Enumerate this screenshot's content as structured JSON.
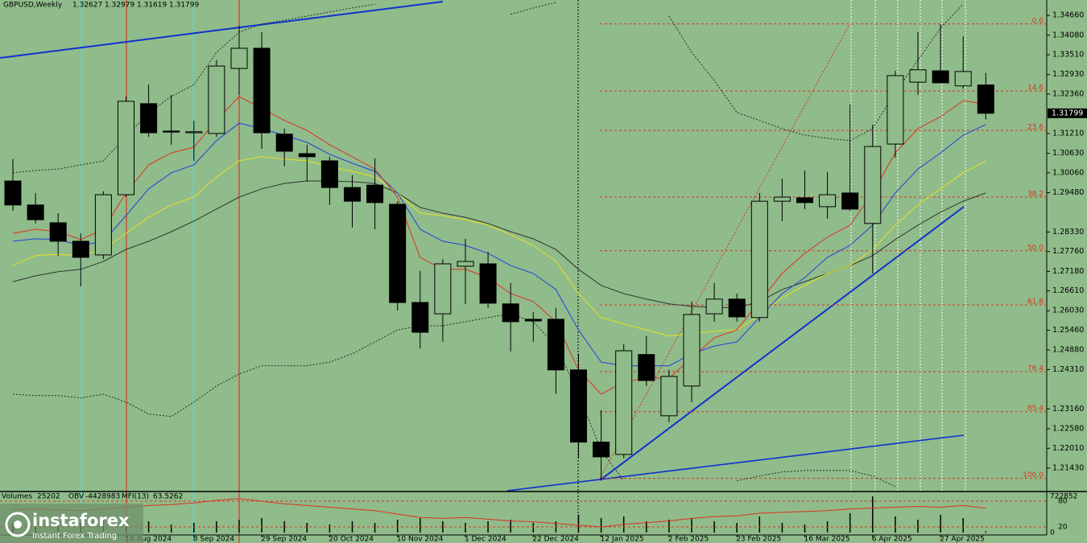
{
  "chart_data": {
    "type": "candlestick",
    "symbol": "GBPUSD,Weekly",
    "categories": [
      null,
      null,
      null,
      null,
      null,
      "18 Aug 2024",
      null,
      null,
      "8 Sep 2024",
      null,
      null,
      "29 Sep 2024",
      null,
      null,
      "20 Oct 2024",
      null,
      null,
      "10 Nov 2024",
      null,
      null,
      "1 Dec 2024",
      null,
      null,
      "22 Dec 2024",
      null,
      null,
      "12 Jan 2025",
      null,
      null,
      "2 Feb 2025",
      null,
      null,
      "23 Feb 2025",
      null,
      null,
      "16 Mar 2025",
      null,
      null,
      "6 Apr 2025",
      null,
      null,
      "27 Apr 2025",
      null,
      null
    ],
    "candles": [
      {
        "open": 1.2982,
        "high": 1.3046,
        "low": 1.2895,
        "close": 1.2912
      },
      {
        "open": 1.2912,
        "high": 1.2947,
        "low": 1.2858,
        "close": 1.2869
      },
      {
        "open": 1.286,
        "high": 1.2888,
        "low": 1.2764,
        "close": 1.2806
      },
      {
        "open": 1.2806,
        "high": 1.2829,
        "low": 1.2674,
        "close": 1.2759
      },
      {
        "open": 1.2766,
        "high": 1.2952,
        "low": 1.2754,
        "close": 1.2942
      },
      {
        "open": 1.2942,
        "high": 1.3229,
        "low": 1.2935,
        "close": 1.3215
      },
      {
        "open": 1.3208,
        "high": 1.3264,
        "low": 1.3111,
        "close": 1.3123
      },
      {
        "open": 1.3128,
        "high": 1.3234,
        "low": 1.3088,
        "close": 1.3125
      },
      {
        "open": 1.3123,
        "high": 1.3158,
        "low": 1.3041,
        "close": 1.3126
      },
      {
        "open": 1.3121,
        "high": 1.3335,
        "low": 1.3111,
        "close": 1.3318
      },
      {
        "open": 1.3311,
        "high": 1.3436,
        "low": 1.3234,
        "close": 1.337
      },
      {
        "open": 1.337,
        "high": 1.3417,
        "low": 1.3076,
        "close": 1.3123
      },
      {
        "open": 1.3119,
        "high": 1.3135,
        "low": 1.3025,
        "close": 1.3069
      },
      {
        "open": 1.3062,
        "high": 1.3088,
        "low": 1.298,
        "close": 1.3053
      },
      {
        "open": 1.3041,
        "high": 1.3053,
        "low": 1.2912,
        "close": 1.2963
      },
      {
        "open": 1.2963,
        "high": 1.2999,
        "low": 1.2846,
        "close": 1.2923
      },
      {
        "open": 1.297,
        "high": 1.3048,
        "low": 1.2841,
        "close": 1.2919
      },
      {
        "open": 1.2914,
        "high": 1.2923,
        "low": 1.2604,
        "close": 1.2627
      },
      {
        "open": 1.2627,
        "high": 1.2719,
        "low": 1.2493,
        "close": 1.254
      },
      {
        "open": 1.2594,
        "high": 1.2754,
        "low": 1.2512,
        "close": 1.274
      },
      {
        "open": 1.2733,
        "high": 1.2813,
        "low": 1.2623,
        "close": 1.2747
      },
      {
        "open": 1.274,
        "high": 1.2775,
        "low": 1.2611,
        "close": 1.2625
      },
      {
        "open": 1.2623,
        "high": 1.2684,
        "low": 1.2484,
        "close": 1.2571
      },
      {
        "open": 1.2578,
        "high": 1.2599,
        "low": 1.2512,
        "close": 1.2573
      },
      {
        "open": 1.2578,
        "high": 1.2611,
        "low": 1.236,
        "close": 1.243
      },
      {
        "open": 1.243,
        "high": 1.2477,
        "low": 1.2172,
        "close": 1.2219
      },
      {
        "open": 1.2219,
        "high": 1.2312,
        "low": 1.2108,
        "close": 1.2176
      },
      {
        "open": 1.2183,
        "high": 1.2505,
        "low": 1.2172,
        "close": 1.2486
      },
      {
        "open": 1.2475,
        "high": 1.2529,
        "low": 1.2383,
        "close": 1.2399
      },
      {
        "open": 1.2296,
        "high": 1.243,
        "low": 1.2277,
        "close": 1.2411
      },
      {
        "open": 1.2383,
        "high": 1.263,
        "low": 1.2336,
        "close": 1.2592
      },
      {
        "open": 1.2594,
        "high": 1.2684,
        "low": 1.2571,
        "close": 1.2637
      },
      {
        "open": 1.2637,
        "high": 1.2653,
        "low": 1.2571,
        "close": 1.2585
      },
      {
        "open": 1.2583,
        "high": 1.2947,
        "low": 1.2571,
        "close": 1.2923
      },
      {
        "open": 1.2923,
        "high": 1.2989,
        "low": 1.2865,
        "close": 1.2935
      },
      {
        "open": 1.2933,
        "high": 1.3013,
        "low": 1.29,
        "close": 1.2919
      },
      {
        "open": 1.2907,
        "high": 1.3008,
        "low": 1.2872,
        "close": 1.2942
      },
      {
        "open": 1.2947,
        "high": 1.3206,
        "low": 1.2895,
        "close": 1.29
      },
      {
        "open": 1.2858,
        "high": 1.3147,
        "low": 1.2712,
        "close": 1.3083
      },
      {
        "open": 1.309,
        "high": 1.3304,
        "low": 1.305,
        "close": 1.329
      },
      {
        "open": 1.3271,
        "high": 1.3417,
        "low": 1.3234,
        "close": 1.3307
      },
      {
        "open": 1.3304,
        "high": 1.344,
        "low": 1.3269,
        "close": 1.3269
      },
      {
        "open": 1.326,
        "high": 1.3405,
        "low": 1.3252,
        "close": 1.3302
      },
      {
        "open": 1.32627,
        "high": 1.32979,
        "low": 1.31619,
        "close": 1.31799
      }
    ],
    "bull_color": "#8fbc8a",
    "bear_color": "#000000",
    "series": [
      {
        "color": "#2a2a2a",
        "dash": true,
        "values": [
          1.3006,
          1.3013,
          1.3017,
          1.3029,
          1.3041,
          1.3111,
          1.3182,
          1.3229,
          1.3264,
          1.3358,
          1.3417,
          1.3441,
          1.3452,
          1.3464,
          1.3476,
          1.3488,
          1.3499,
          null,
          null,
          null,
          null,
          null,
          1.3469,
          1.3488,
          1.3504,
          null,
          null,
          null,
          null,
          1.3464,
          1.3358,
          1.3276,
          1.3182,
          1.3159,
          1.3135,
          1.3116,
          1.3107,
          1.31,
          1.3135,
          1.3241,
          1.3335,
          1.3429,
          1.3499,
          null
        ]
      },
      {
        "color": "#2a2a2a",
        "dash": true,
        "values": [
          1.2359,
          1.2355,
          1.2355,
          1.2348,
          1.2359,
          1.2336,
          1.2301,
          1.2294,
          1.2336,
          1.2383,
          1.2418,
          1.2442,
          1.2442,
          1.2442,
          1.2453,
          1.2477,
          1.2512,
          1.2547,
          1.2559,
          1.2559,
          1.2571,
          1.2583,
          1.2594,
          1.2571,
          1.25,
          1.2359,
          1.2195,
          1.2106,
          null,
          null,
          null,
          null,
          1.2106,
          1.212,
          1.2132,
          1.2136,
          1.2136,
          1.2136,
          1.212,
          1.2089,
          null,
          null,
          null,
          null
        ]
      },
      {
        "color": "#333333",
        "dash": false,
        "values": [
          1.2688,
          1.2705,
          1.2717,
          1.2724,
          1.2747,
          1.2782,
          1.2806,
          1.2834,
          1.2865,
          1.29,
          1.2935,
          1.2959,
          1.2975,
          1.2982,
          1.2982,
          1.298,
          1.2975,
          1.2947,
          1.2905,
          1.2888,
          1.2876,
          1.2858,
          1.2834,
          1.2813,
          1.2782,
          1.2724,
          1.2677,
          1.2653,
          1.2637,
          1.2623,
          1.2616,
          1.2613,
          1.2611,
          1.263,
          1.2665,
          1.2688,
          1.2712,
          1.2735,
          1.2764,
          1.2811,
          1.2853,
          1.2891,
          1.2923,
          1.2947
        ]
      },
      {
        "color": "#e8e020",
        "dash": false,
        "values": [
          1.2735,
          1.2764,
          1.2768,
          1.2764,
          1.2782,
          1.2829,
          1.2876,
          1.2912,
          1.2935,
          1.2994,
          1.3041,
          1.3053,
          1.3046,
          1.3041,
          1.3024,
          1.301,
          1.2994,
          1.2947,
          1.2888,
          1.2881,
          1.2869,
          1.2853,
          1.2825,
          1.2794,
          1.2747,
          1.2653,
          1.2583,
          1.2564,
          1.2547,
          1.2529,
          1.2536,
          1.2543,
          1.2547,
          1.259,
          1.2641,
          1.2677,
          1.2712,
          1.2735,
          1.2782,
          1.2853,
          1.2912,
          1.2959,
          1.3006,
          1.3041
        ]
      },
      {
        "color": "#2040e0",
        "dash": false,
        "values": [
          1.2806,
          1.2813,
          1.2811,
          1.2794,
          1.2806,
          1.2881,
          1.2959,
          1.3006,
          1.3029,
          1.31,
          1.3151,
          1.3135,
          1.3116,
          1.3095,
          1.306,
          1.3034,
          1.301,
          1.2947,
          1.2841,
          1.2806,
          1.2794,
          1.2771,
          1.2735,
          1.2712,
          1.2665,
          1.2547,
          1.2453,
          1.2442,
          1.2442,
          1.2442,
          1.2477,
          1.25,
          1.2512,
          1.2583,
          1.2653,
          1.27,
          1.2759,
          1.2794,
          1.2853,
          1.2947,
          1.3017,
          1.3064,
          1.3116,
          1.3147
        ]
      },
      {
        "color": "#e03020",
        "dash": false,
        "values": [
          1.2829,
          1.2841,
          1.2834,
          1.2811,
          1.2841,
          1.2947,
          1.3029,
          1.3064,
          1.3081,
          1.3159,
          1.3229,
          1.3194,
          1.3159,
          1.313,
          1.3088,
          1.3053,
          1.3017,
          1.2935,
          1.2759,
          1.2724,
          1.2724,
          1.27,
          1.2653,
          1.263,
          1.2571,
          1.243,
          1.2359,
          1.2395,
          1.2406,
          1.2406,
          1.2465,
          1.2524,
          1.2547,
          1.263,
          1.2712,
          1.2771,
          1.2818,
          1.2853,
          1.2947,
          1.3064,
          1.3135,
          1.317,
          1.3217,
          1.3206
        ]
      }
    ],
    "fib_color": "#e03020",
    "fib_levels": [
      {
        "label": "0.0",
        "value": 1.3441
      },
      {
        "label": "14.6",
        "value": 1.3245
      },
      {
        "label": "23.6",
        "value": 1.313
      },
      {
        "label": "38.2",
        "value": 1.2935
      },
      {
        "label": "50.0",
        "value": 1.2778
      },
      {
        "label": "61.8",
        "value": 1.262
      },
      {
        "label": "76.4",
        "value": 1.2425
      },
      {
        "label": "85.4",
        "value": 1.2308
      },
      {
        "label": "100.0",
        "value": 1.2113
      }
    ],
    "ylim": [
      1.2077,
      1.3511
    ],
    "yticks": [
      {
        "value": 1.3466,
        "label": "1.34660"
      },
      {
        "value": 1.3408,
        "label": "1.34080"
      },
      {
        "value": 1.3351,
        "label": "1.33510"
      },
      {
        "value": 1.3293,
        "label": "1.32930"
      },
      {
        "value": 1.3236,
        "label": "1.32360"
      },
      {
        "value": 1.3121,
        "label": "1.31210"
      },
      {
        "value": 1.3063,
        "label": "1.30630"
      },
      {
        "value": 1.3006,
        "label": "1.30060"
      },
      {
        "value": 1.2948,
        "label": "1.29480"
      },
      {
        "value": 1.2833,
        "label": "1.28330"
      },
      {
        "value": 1.2776,
        "label": "1.27760"
      },
      {
        "value": 1.2718,
        "label": "1.27180"
      },
      {
        "value": 1.2661,
        "label": "1.26610"
      },
      {
        "value": 1.2603,
        "label": "1.26030"
      },
      {
        "value": 1.2546,
        "label": "1.25460"
      },
      {
        "value": 1.2488,
        "label": "1.24880"
      },
      {
        "value": 1.2431,
        "label": "1.24310"
      },
      {
        "value": 1.2316,
        "label": "1.23160"
      },
      {
        "value": 1.2258,
        "label": "1.22580"
      },
      {
        "value": 1.2201,
        "label": "1.22010"
      },
      {
        "value": 1.2143,
        "label": "1.21430"
      }
    ],
    "lower": {
      "volume_label": "Volumes",
      "volumes": [
        193000,
        161000,
        225000,
        193000,
        257000,
        289000,
        225000,
        161000,
        193000,
        225000,
        257000,
        289000,
        225000,
        193000,
        161000,
        225000,
        193000,
        257000,
        289000,
        225000,
        193000,
        225000,
        257000,
        193000,
        225000,
        353000,
        289000,
        321000,
        225000,
        257000,
        289000,
        225000,
        193000,
        321000,
        193000,
        161000,
        225000,
        386000,
        722852,
        321000,
        257000,
        353000,
        289000,
        25202
      ],
      "volume_ylim": [
        0,
        722852
      ],
      "volume_color": "#000000",
      "obv_label": "OBV",
      "obv": -4428983,
      "mfi_label": "MFI(13)",
      "mfi": [
        60,
        62,
        60,
        58,
        62,
        66,
        70,
        72,
        76,
        82,
        86,
        80,
        74,
        70,
        66,
        62,
        58,
        50,
        42,
        40,
        42,
        38,
        34,
        32,
        28,
        24,
        20,
        26,
        30,
        34,
        40,
        44,
        46,
        52,
        54,
        56,
        58,
        62,
        64,
        66,
        68,
        66,
        70,
        63.5262
      ],
      "mfi_color": "#e03020",
      "mfi_ylim": [
        0,
        100
      ],
      "mfi_levels": [
        80,
        20
      ]
    },
    "watermark": {
      "brand": "instaforex",
      "tagline": "Instant Forex Trading"
    }
  }
}
